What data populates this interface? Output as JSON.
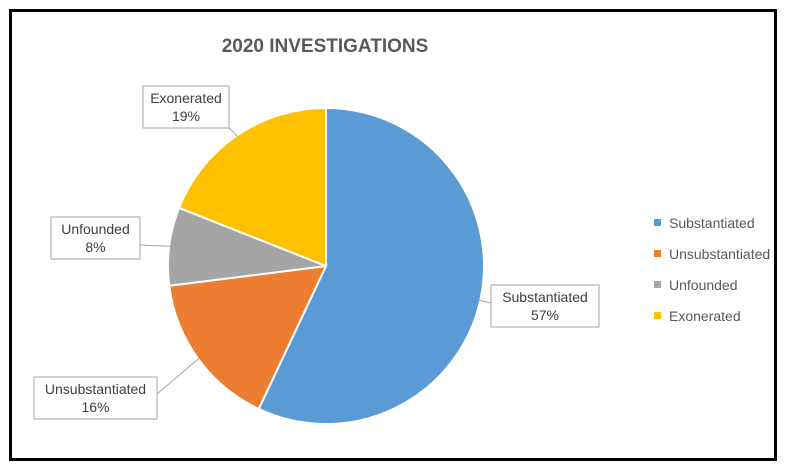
{
  "chart_data": {
    "type": "pie",
    "title": "2020 INVESTIGATIONS",
    "slices": [
      {
        "label": "Substantiated",
        "value": 57,
        "display": "57%",
        "color": "#5B9BD5"
      },
      {
        "label": "Unsubstantiated",
        "value": 16,
        "display": "16%",
        "color": "#ED7D31"
      },
      {
        "label": "Unfounded",
        "value": 8,
        "display": "8%",
        "color": "#A5A5A5"
      },
      {
        "label": "Exonerated",
        "value": 19,
        "display": "19%",
        "color": "#FFC000"
      }
    ],
    "legend": {
      "position": "right",
      "entries": [
        "Substantiated",
        "Unsubstantiated",
        "Unfounded",
        "Exonerated"
      ]
    }
  }
}
